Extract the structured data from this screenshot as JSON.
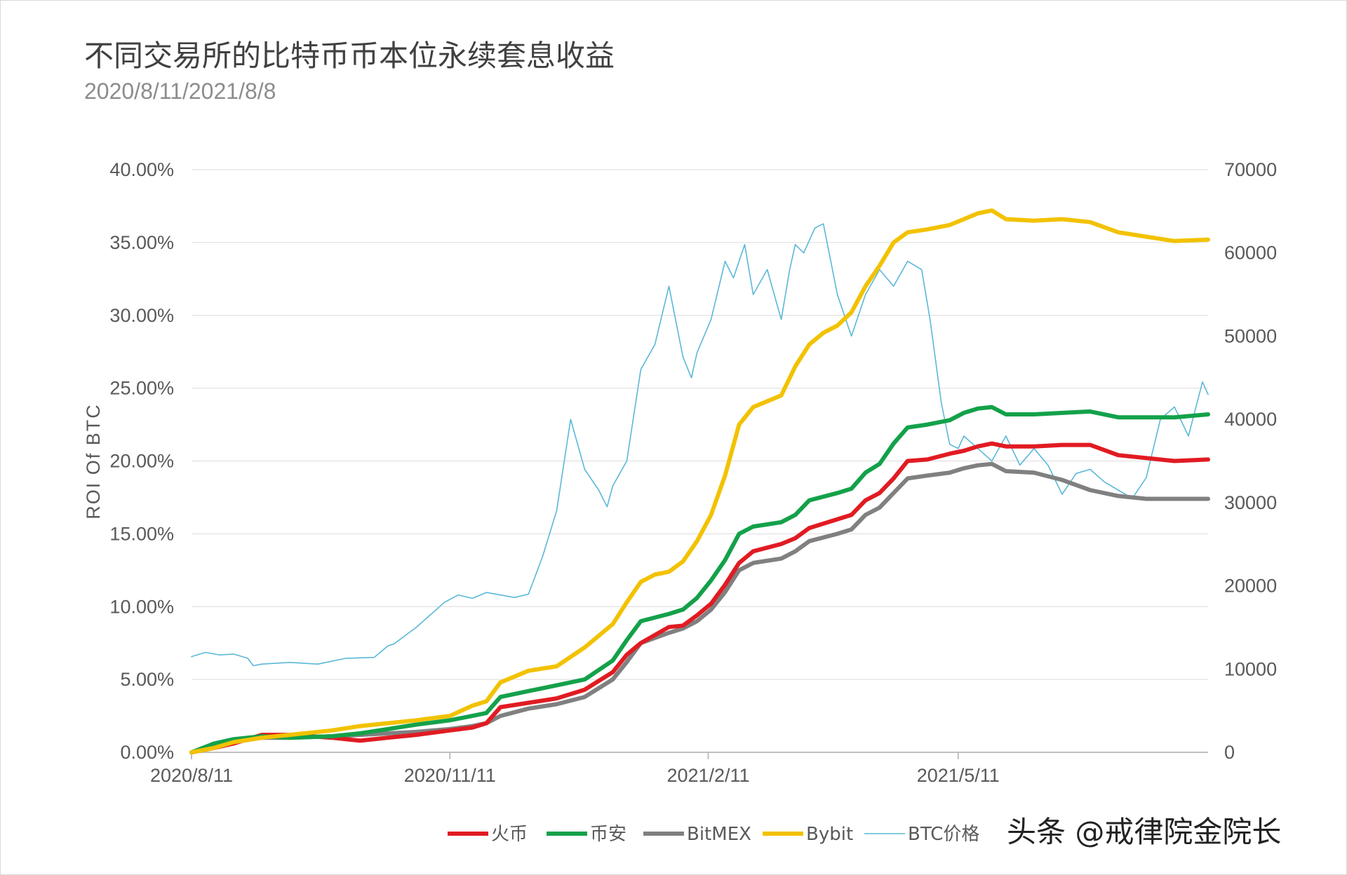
{
  "title": "不同交易所的比特币币本位永续套息收益",
  "subtitle": "2020/8/11/2021/8/8",
  "watermark": "头条 @戒律院金院长",
  "colors": {
    "huobi": "#e11b22",
    "binance": "#13a14a",
    "bitmex": "#808080",
    "bybit": "#f2c200",
    "btc": "#5ab8d8",
    "grid": "#e6e6e6",
    "axis": "#bfbfbf"
  },
  "chart_data": {
    "type": "line",
    "title": "不同交易所的比特币币本位永续套息收益",
    "subtitle": "2020/8/11/2021/8/8",
    "ylabel": "ROI  Of  BTC",
    "ylim": [
      0,
      0.4
    ],
    "y2lim": [
      0,
      70000
    ],
    "y_ticks": [
      "0.00%",
      "5.00%",
      "10.00%",
      "15.00%",
      "20.00%",
      "25.00%",
      "30.00%",
      "35.00%",
      "40.00%"
    ],
    "y2_ticks": [
      "0",
      "10000",
      "20000",
      "30000",
      "40000",
      "50000",
      "60000",
      "70000"
    ],
    "x_ticks": [
      "2020/8/11",
      "2020/11/11",
      "2021/2/11",
      "2021/5/11"
    ],
    "x_tick_days": [
      0,
      92,
      184,
      273
    ],
    "x_range_days": [
      0,
      362
    ],
    "grid": true,
    "legend_position": "bottom",
    "series": [
      {
        "name": "火币",
        "axis": "left",
        "x": [
          0,
          8,
          15,
          25,
          35,
          50,
          60,
          70,
          80,
          92,
          100,
          105,
          110,
          120,
          130,
          140,
          150,
          155,
          160,
          170,
          175,
          180,
          185,
          190,
          195,
          200,
          210,
          215,
          220,
          230,
          235,
          240,
          245,
          250,
          255,
          262,
          270,
          275,
          280,
          285,
          290,
          300,
          310,
          320,
          330,
          340,
          350,
          362
        ],
        "values": [
          0.0,
          0.003,
          0.006,
          0.012,
          0.012,
          0.01,
          0.008,
          0.01,
          0.012,
          0.015,
          0.017,
          0.02,
          0.031,
          0.034,
          0.037,
          0.043,
          0.055,
          0.067,
          0.075,
          0.086,
          0.087,
          0.094,
          0.102,
          0.115,
          0.13,
          0.138,
          0.143,
          0.147,
          0.154,
          0.16,
          0.163,
          0.173,
          0.178,
          0.188,
          0.2,
          0.201,
          0.205,
          0.207,
          0.21,
          0.212,
          0.21,
          0.21,
          0.211,
          0.211,
          0.204,
          0.202,
          0.2,
          0.201
        ]
      },
      {
        "name": "币安",
        "axis": "left",
        "x": [
          0,
          8,
          15,
          25,
          35,
          50,
          60,
          70,
          80,
          92,
          100,
          105,
          110,
          120,
          130,
          140,
          150,
          155,
          160,
          170,
          175,
          180,
          185,
          190,
          195,
          200,
          210,
          215,
          220,
          230,
          235,
          240,
          245,
          250,
          255,
          262,
          270,
          275,
          280,
          285,
          290,
          300,
          310,
          320,
          330,
          340,
          350,
          362
        ],
        "values": [
          0.0,
          0.006,
          0.009,
          0.011,
          0.01,
          0.011,
          0.013,
          0.016,
          0.019,
          0.022,
          0.025,
          0.027,
          0.038,
          0.042,
          0.046,
          0.05,
          0.063,
          0.077,
          0.09,
          0.095,
          0.098,
          0.106,
          0.118,
          0.132,
          0.15,
          0.155,
          0.158,
          0.163,
          0.173,
          0.178,
          0.181,
          0.192,
          0.198,
          0.212,
          0.223,
          0.225,
          0.228,
          0.233,
          0.236,
          0.237,
          0.232,
          0.232,
          0.233,
          0.234,
          0.23,
          0.23,
          0.23,
          0.232
        ]
      },
      {
        "name": "BitMEX",
        "axis": "left",
        "x": [
          0,
          8,
          15,
          25,
          35,
          50,
          60,
          70,
          80,
          92,
          100,
          105,
          110,
          120,
          130,
          140,
          150,
          155,
          160,
          170,
          175,
          180,
          185,
          190,
          195,
          200,
          210,
          215,
          220,
          230,
          235,
          240,
          245,
          250,
          255,
          262,
          270,
          275,
          280,
          285,
          290,
          300,
          310,
          320,
          330,
          340,
          350,
          362
        ],
        "values": [
          0.0,
          0.004,
          0.007,
          0.01,
          0.01,
          0.011,
          0.012,
          0.013,
          0.014,
          0.016,
          0.018,
          0.02,
          0.025,
          0.03,
          0.033,
          0.038,
          0.05,
          0.062,
          0.075,
          0.082,
          0.085,
          0.09,
          0.098,
          0.11,
          0.125,
          0.13,
          0.133,
          0.138,
          0.145,
          0.15,
          0.153,
          0.163,
          0.168,
          0.178,
          0.188,
          0.19,
          0.192,
          0.195,
          0.197,
          0.198,
          0.193,
          0.192,
          0.187,
          0.18,
          0.176,
          0.174,
          0.174,
          0.174
        ]
      },
      {
        "name": "Bybit",
        "axis": "left",
        "x": [
          0,
          8,
          15,
          25,
          35,
          50,
          60,
          70,
          80,
          92,
          100,
          105,
          110,
          120,
          130,
          140,
          150,
          155,
          160,
          165,
          170,
          175,
          180,
          185,
          190,
          195,
          200,
          205,
          210,
          215,
          220,
          225,
          230,
          235,
          240,
          245,
          250,
          255,
          262,
          270,
          275,
          280,
          285,
          290,
          300,
          310,
          320,
          330,
          340,
          350,
          362
        ],
        "values": [
          0.0,
          0.003,
          0.007,
          0.01,
          0.012,
          0.015,
          0.018,
          0.02,
          0.022,
          0.025,
          0.032,
          0.035,
          0.048,
          0.056,
          0.059,
          0.072,
          0.088,
          0.103,
          0.117,
          0.122,
          0.124,
          0.131,
          0.145,
          0.163,
          0.19,
          0.225,
          0.237,
          0.241,
          0.245,
          0.265,
          0.28,
          0.288,
          0.293,
          0.302,
          0.32,
          0.334,
          0.35,
          0.357,
          0.359,
          0.362,
          0.366,
          0.37,
          0.372,
          0.366,
          0.365,
          0.366,
          0.364,
          0.357,
          0.354,
          0.351,
          0.352
        ]
      },
      {
        "name": "BTC价格",
        "axis": "right",
        "x": [
          0,
          5,
          10,
          15,
          20,
          22,
          25,
          35,
          45,
          55,
          65,
          70,
          72,
          80,
          85,
          90,
          95,
          100,
          105,
          110,
          115,
          120,
          125,
          130,
          135,
          140,
          145,
          148,
          150,
          155,
          160,
          165,
          170,
          175,
          178,
          180,
          185,
          190,
          193,
          197,
          200,
          205,
          210,
          213,
          215,
          218,
          222,
          225,
          230,
          235,
          240,
          245,
          250,
          255,
          260,
          263,
          267,
          270,
          273,
          275,
          280,
          285,
          290,
          295,
          300,
          305,
          310,
          315,
          320,
          325,
          330,
          335,
          340,
          345,
          350,
          355,
          360,
          362
        ],
        "values": [
          11500,
          12000,
          11700,
          11800,
          11300,
          10400,
          10600,
          10800,
          10600,
          11300,
          11400,
          12800,
          13000,
          15000,
          16500,
          18000,
          18900,
          18500,
          19200,
          18900,
          18600,
          19000,
          23500,
          29000,
          40000,
          34000,
          31500,
          29500,
          32000,
          35000,
          46000,
          49000,
          56000,
          47500,
          45000,
          48000,
          52000,
          59000,
          57000,
          61000,
          55000,
          58000,
          52000,
          58000,
          61000,
          60000,
          63000,
          63500,
          55000,
          50000,
          55000,
          58000,
          56000,
          59000,
          58000,
          52000,
          42000,
          37000,
          36500,
          38000,
          36500,
          35000,
          38000,
          34500,
          36500,
          34500,
          31000,
          33500,
          34000,
          32500,
          31500,
          30500,
          33000,
          40000,
          41500,
          38000,
          44500,
          43000
        ]
      }
    ]
  }
}
